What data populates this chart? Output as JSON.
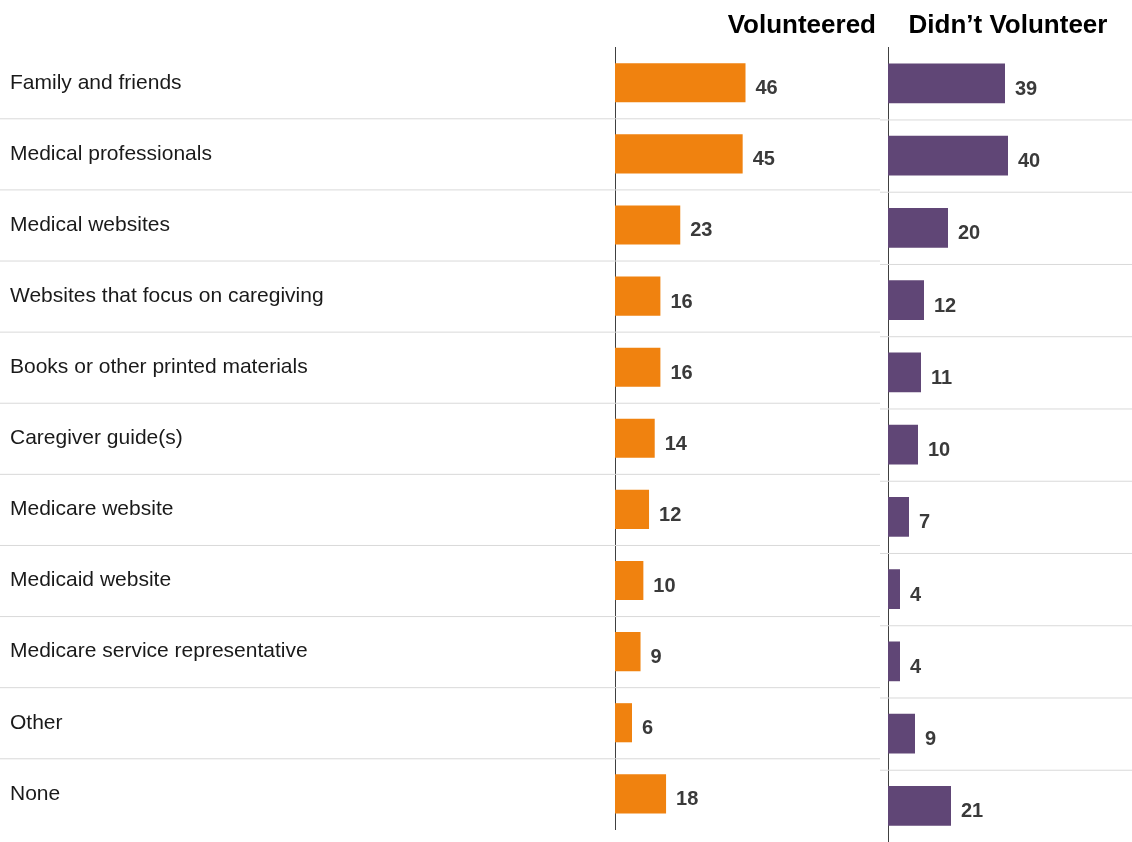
{
  "chart_data": [
    {
      "type": "bar",
      "orientation": "horizontal",
      "title": "Volunteered",
      "categories": [
        "Family and friends",
        "Medical professionals",
        "Medical websites",
        "Websites that focus on caregiving",
        "Books or other printed materials",
        "Caregiver guide(s)",
        "Medicare website",
        "Medicaid website",
        "Medicare service representative",
        "Other",
        "None"
      ],
      "values": [
        46,
        45,
        23,
        16,
        16,
        14,
        12,
        10,
        9,
        6,
        18
      ],
      "color": "#f0820f",
      "data_labels": true,
      "grid": "y",
      "tick_labels": "y"
    },
    {
      "type": "bar",
      "orientation": "horizontal",
      "title": "Didn’t Volunteer",
      "categories": [
        null,
        null,
        null,
        null,
        null,
        null,
        null,
        null,
        null,
        null,
        null
      ],
      "values": [
        39,
        40,
        20,
        12,
        11,
        10,
        7,
        4,
        4,
        9,
        21
      ],
      "color": "#604676",
      "data_labels": true,
      "grid": "y",
      "tick_labels": false
    }
  ]
}
